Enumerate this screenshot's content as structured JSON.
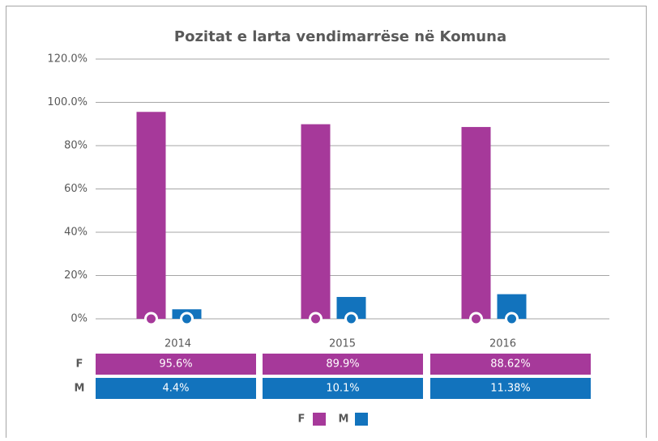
{
  "chart_data": {
    "type": "bar",
    "title": "Pozitat e larta vendimarrëse në Komuna",
    "categories": [
      "2014",
      "2015",
      "2016"
    ],
    "series": [
      {
        "name": "F",
        "color": "#a6399a",
        "values": [
          95.6,
          89.9,
          88.62
        ],
        "value_labels": [
          "95.6%",
          "89.9%",
          "88.62%"
        ]
      },
      {
        "name": "M",
        "color": "#1273bd",
        "values": [
          4.4,
          10.1,
          11.38
        ],
        "value_labels": [
          "4.4%",
          "10.1%",
          "11.38%"
        ]
      }
    ],
    "ylim": [
      0,
      120
    ],
    "yticks": [
      {
        "value": 0,
        "label": "0%"
      },
      {
        "value": 20,
        "label": "20%"
      },
      {
        "value": 40,
        "label": "40%"
      },
      {
        "value": 60,
        "label": "60%"
      },
      {
        "value": 80,
        "label": "80%"
      },
      {
        "value": 100,
        "label": "100.0%"
      },
      {
        "value": 120,
        "label": "120.0%"
      }
    ],
    "grid": true,
    "legend": "bottom"
  }
}
